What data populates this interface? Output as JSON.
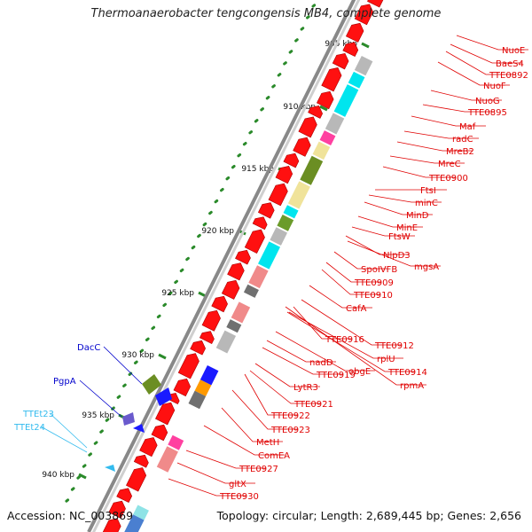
{
  "title": "Thermoanaerobacter tengcongensis MB4, complete genome",
  "footer": {
    "accession": "Accession: NC_003869",
    "topology": "Topology: circular; Length: 2,689,445 bp; Genes: 2,656"
  },
  "colors": {
    "cds": "#ff1010",
    "label_red": "#e00000",
    "label_blue": "#0000cc",
    "label_cyan": "#33bbee",
    "backbone": "#999999",
    "tick": "#2a8a2a"
  },
  "ruler": [
    {
      "text": "905 kbp"
    },
    {
      "text": "910 kbp"
    },
    {
      "text": "915 kbp"
    },
    {
      "text": "920 kbp"
    },
    {
      "text": "925 kbp"
    },
    {
      "text": "930 kbp"
    },
    {
      "text": "935 kbp"
    },
    {
      "text": "940 kbp"
    }
  ],
  "labels_right": [
    "NuoE",
    "BaeS4",
    "TTE0892",
    "NuoF",
    "NuoG",
    "TTE0895",
    "Maf",
    "radC",
    "MreB2",
    "MreC",
    "TTE0900",
    "FtsI",
    "minC",
    "MinD",
    "MinE",
    "FtsW",
    "NlpD3",
    "mgsA",
    "SpoIVFB",
    "TTE0909",
    "TTE0910",
    "CafA",
    "TTE0912",
    "TTE0916",
    "rplU",
    "TTE0914",
    "rpmA",
    "obgE",
    "nadD",
    "TTE0919",
    "LytR3",
    "TTE0921",
    "TTE0922",
    "TTE0923",
    "MetH",
    "ComEA",
    "TTE0927",
    "gltX",
    "TTE0930"
  ],
  "labels_left": [
    {
      "text": "DacC",
      "color": "blue"
    },
    {
      "text": "PgpA",
      "color": "blue"
    },
    {
      "text": "TTEt23",
      "color": "cyan"
    },
    {
      "text": "TTEt24",
      "color": "cyan"
    }
  ]
}
